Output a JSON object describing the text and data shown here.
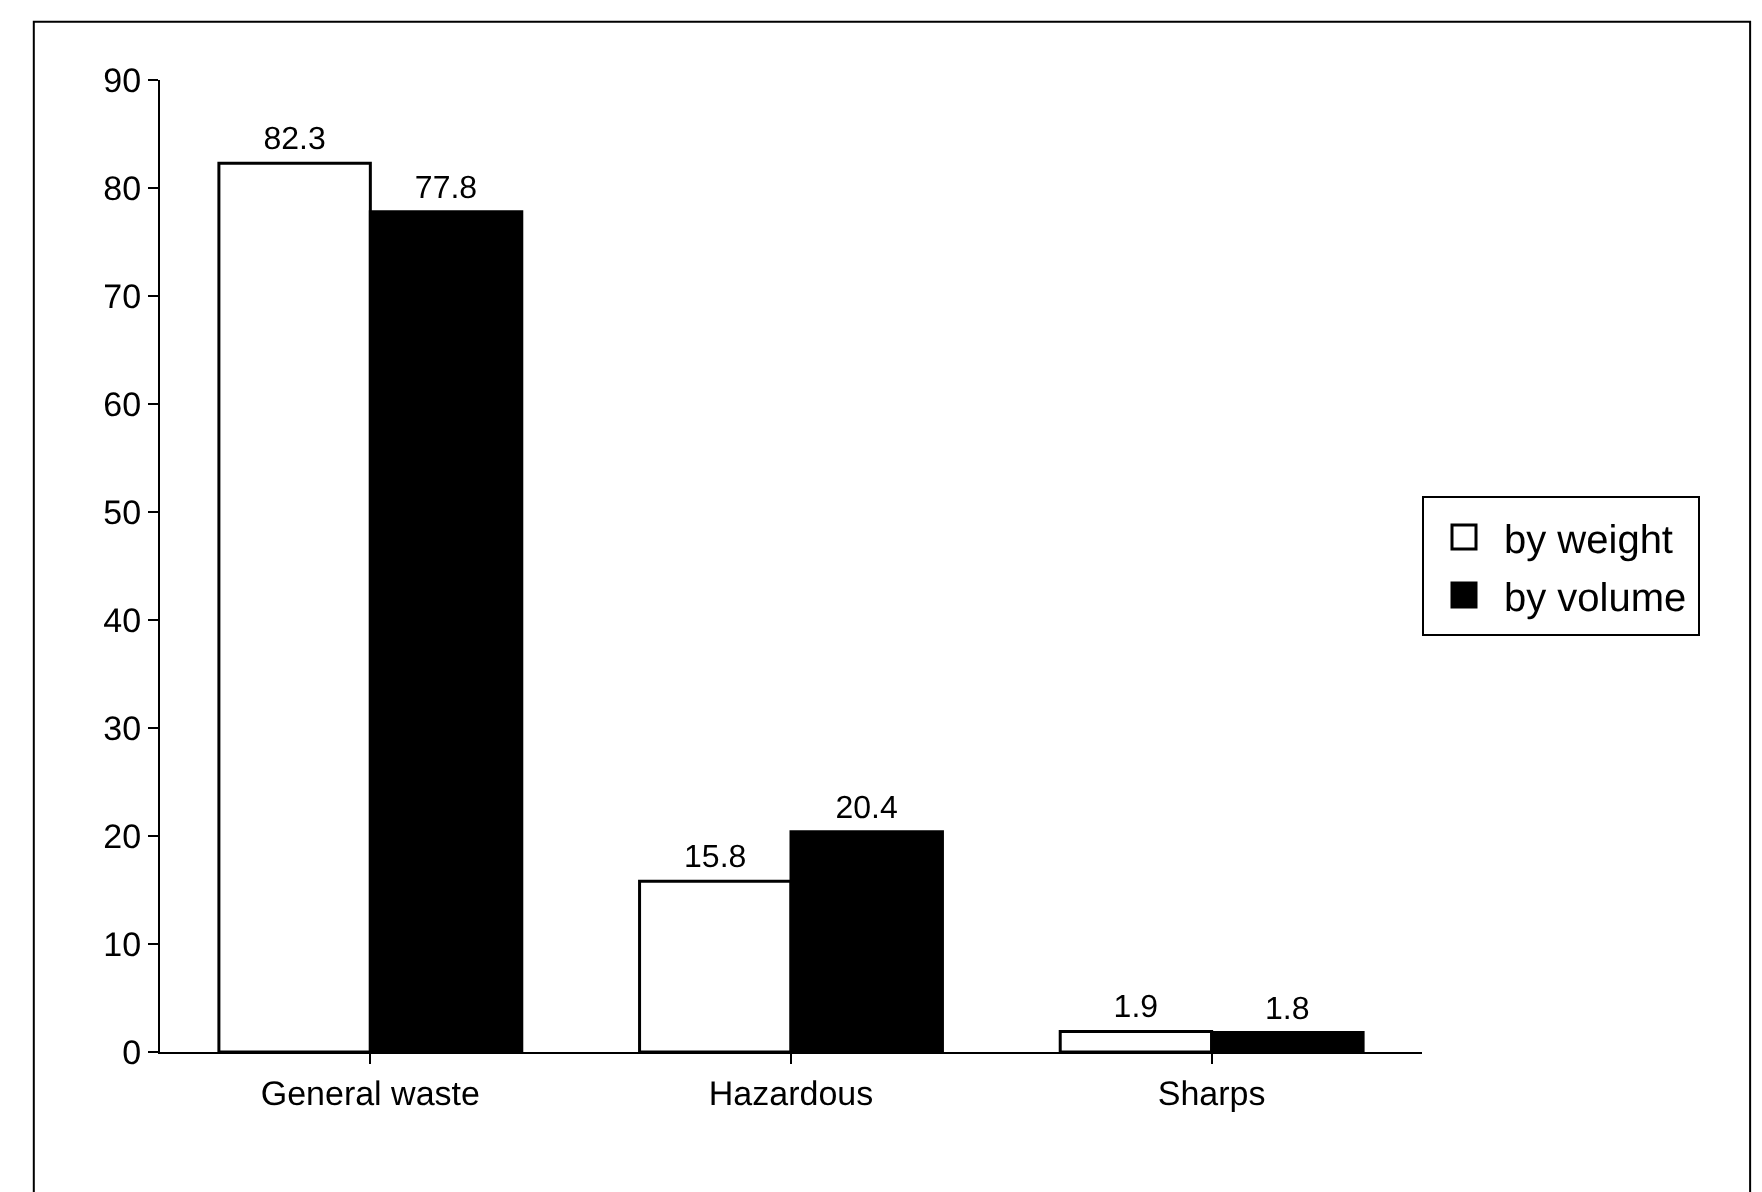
{
  "chart_data": {
    "type": "bar",
    "categories": [
      "General waste",
      "Hazardous",
      "Sharps"
    ],
    "series": [
      {
        "name": "by weight",
        "color": "#ffffff",
        "values": [
          82.3,
          15.8,
          1.9
        ]
      },
      {
        "name": "by volume",
        "color": "#000000",
        "values": [
          77.8,
          20.4,
          1.8
        ]
      }
    ],
    "ylim": [
      0,
      90
    ],
    "yticks": [
      0,
      10,
      20,
      30,
      40,
      50,
      60,
      70,
      80,
      90
    ],
    "data_labels": true,
    "legend": "right",
    "grid": false
  }
}
